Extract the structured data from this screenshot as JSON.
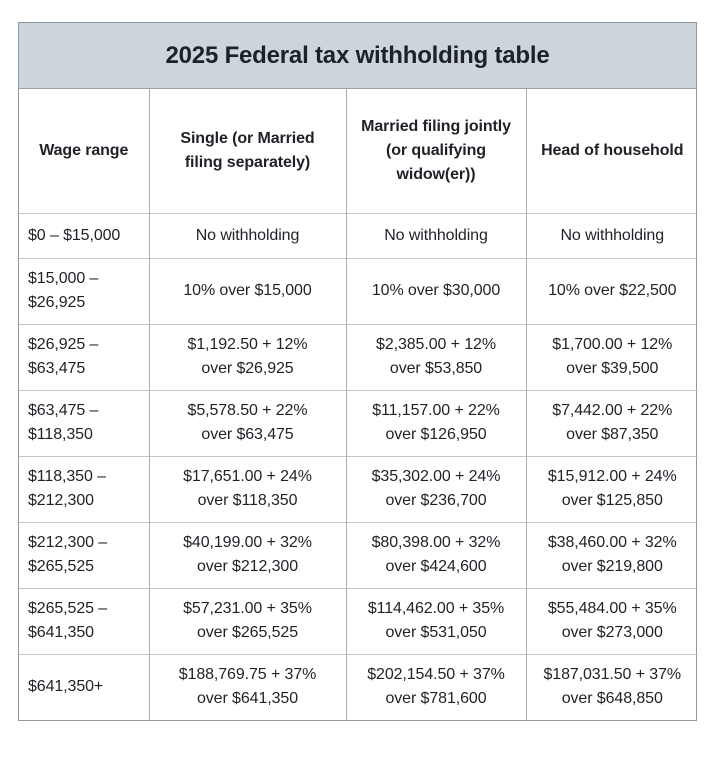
{
  "chart_data": {
    "type": "table",
    "title": "2025 Federal tax withholding table",
    "columns": [
      "Wage range",
      "Single (or Married\nfiling separately)",
      "Married filing jointly\n(or qualifying\nwidow(er))",
      "Head of household"
    ],
    "rows": [
      [
        "$0 – $15,000",
        "No withholding",
        "No withholding",
        "No withholding"
      ],
      [
        "$15,000 –\n$26,925",
        "10% over $15,000",
        "10% over $30,000",
        "10% over $22,500"
      ],
      [
        "$26,925 –\n$63,475",
        "$1,192.50 + 12%\nover $26,925",
        "$2,385.00 + 12%\nover $53,850",
        "$1,700.00 + 12%\nover $39,500"
      ],
      [
        "$63,475 –\n$118,350",
        "$5,578.50 + 22%\nover $63,475",
        "$11,157.00 + 22%\nover $126,950",
        "$7,442.00 + 22%\nover $87,350"
      ],
      [
        "$118,350 –\n$212,300",
        "$17,651.00 + 24%\nover $118,350",
        "$35,302.00 + 24%\nover $236,700",
        "$15,912.00 + 24%\nover $125,850"
      ],
      [
        "$212,300 –\n$265,525",
        "$40,199.00 + 32%\nover $212,300",
        "$80,398.00 + 32%\nover $424,600",
        "$38,460.00 + 32%\nover $219,800"
      ],
      [
        "$265,525 –\n$641,350",
        "$57,231.00 + 35%\nover $265,525",
        "$114,462.00 + 35%\nover $531,050",
        "$55,484.00 + 35%\nover $273,000"
      ],
      [
        "$641,350+",
        "$188,769.75 + 37%\nover $641,350",
        "$202,154.50 + 37%\nover $781,600",
        "$187,031.50 + 37%\nover $648,850"
      ]
    ],
    "layout": {
      "title_bg": "#ccd5db",
      "border_color": "#90979c",
      "grid_vertical_color": "#a8aeb3",
      "grid_horizontal_color": "#c2c7ca",
      "text_color": "#1e2227",
      "body_bg": "#ffffff"
    }
  }
}
